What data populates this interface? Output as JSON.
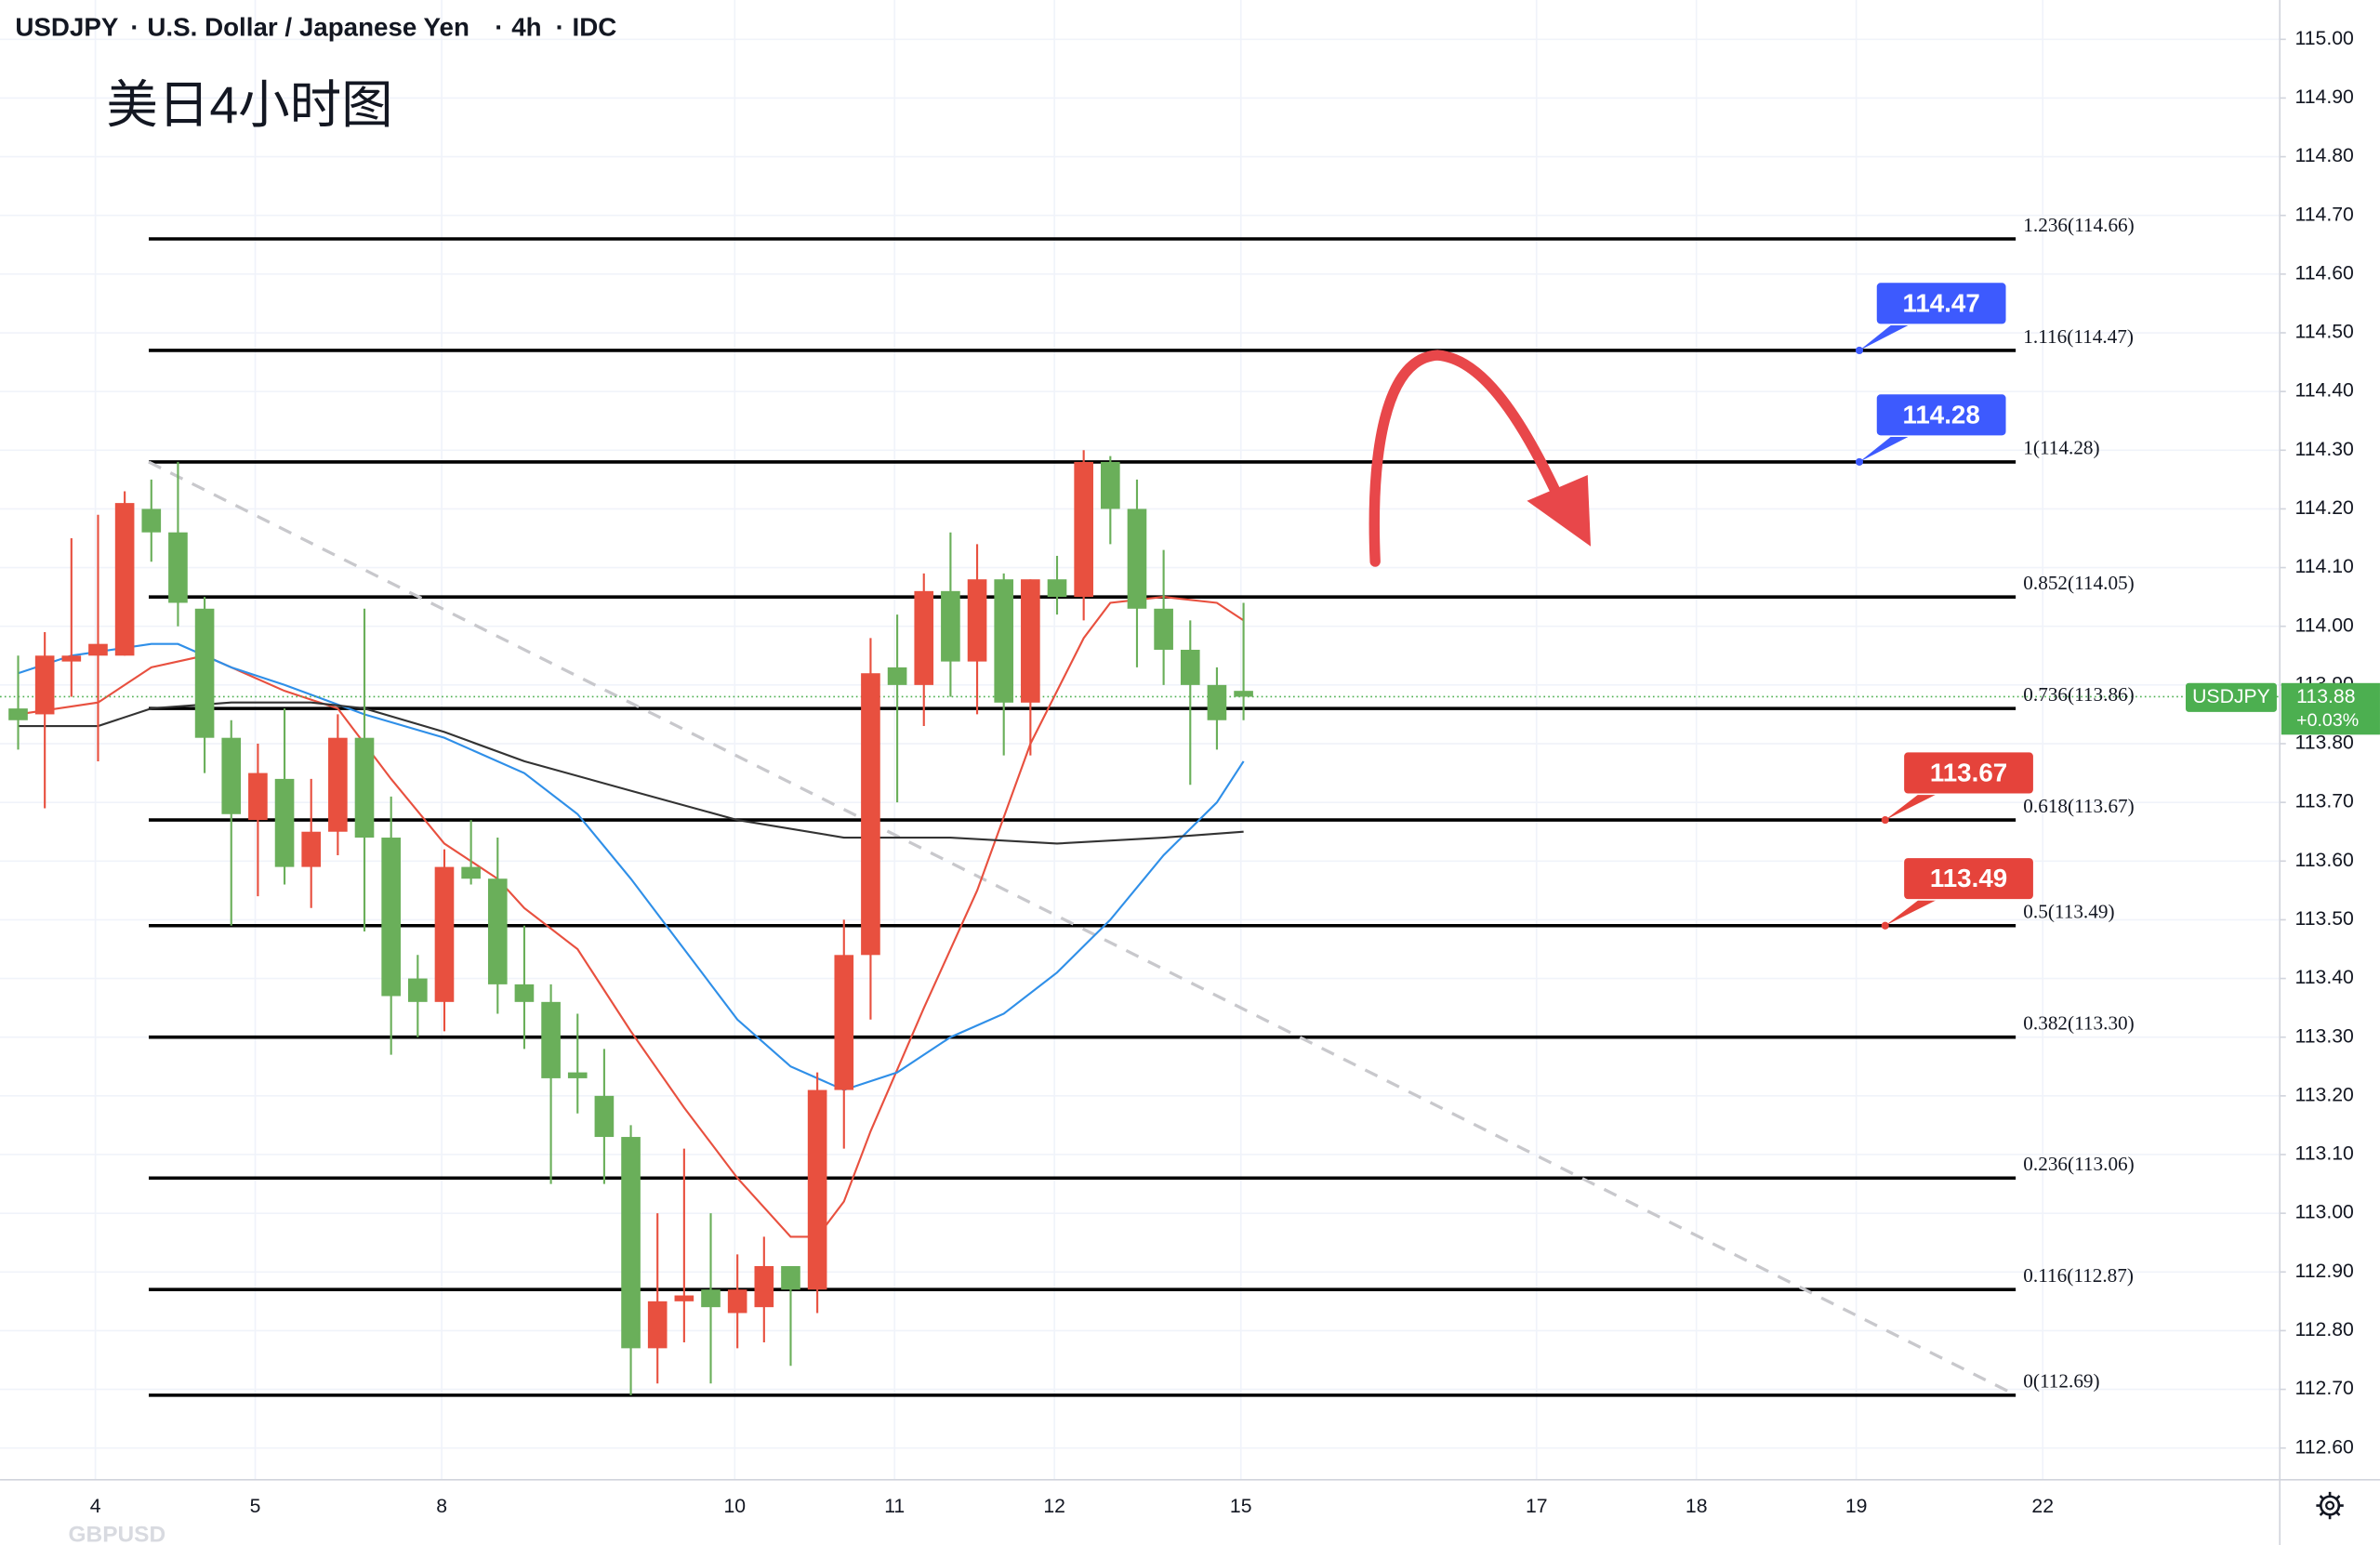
{
  "header": {
    "symbol": "USDJPY",
    "name": "U.S. Dollar / Japanese Yen",
    "interval": "4h",
    "source": "IDC"
  },
  "footer_symbol": "GBPUSD",
  "chart_data": {
    "type": "candlestick",
    "title": "美日4小时图",
    "up_color": "#e8503f",
    "down_color": "#6aaf5a",
    "open": [
      113.86,
      113.85,
      113.94,
      113.95,
      113.95,
      114.2,
      114.16,
      114.03,
      113.81,
      113.67,
      113.74,
      113.59,
      113.65,
      113.81,
      113.64,
      113.4,
      113.36,
      113.59,
      113.57,
      113.39,
      113.36,
      113.24,
      113.2,
      113.13,
      112.77,
      112.85,
      112.87,
      112.83,
      112.84,
      112.91,
      112.87,
      113.21,
      113.44,
      113.93,
      113.9,
      114.06,
      113.94,
      114.08,
      113.87,
      114.08,
      114.05,
      114.28,
      114.2,
      114.03,
      113.96,
      113.9,
      113.89
    ],
    "high": [
      113.95,
      113.99,
      114.15,
      114.19,
      114.23,
      114.25,
      114.28,
      114.05,
      113.84,
      113.8,
      113.86,
      113.74,
      113.85,
      114.03,
      113.71,
      113.44,
      113.62,
      113.67,
      113.64,
      113.49,
      113.39,
      113.34,
      113.28,
      113.15,
      113.0,
      113.11,
      113.0,
      112.93,
      112.96,
      112.91,
      113.24,
      113.5,
      113.98,
      114.02,
      114.09,
      114.16,
      114.14,
      114.09,
      114.08,
      114.12,
      114.3,
      114.29,
      114.25,
      114.13,
      114.01,
      113.93,
      114.04
    ],
    "low": [
      113.79,
      113.69,
      113.88,
      113.77,
      113.95,
      114.11,
      114.0,
      113.75,
      113.49,
      113.54,
      113.56,
      113.52,
      113.61,
      113.48,
      113.27,
      113.3,
      113.31,
      113.56,
      113.34,
      113.28,
      113.05,
      113.17,
      113.05,
      112.69,
      112.71,
      112.78,
      112.71,
      112.77,
      112.78,
      112.74,
      112.83,
      113.11,
      113.33,
      113.7,
      113.83,
      113.88,
      113.85,
      113.78,
      113.78,
      114.02,
      114.01,
      114.14,
      113.93,
      113.9,
      113.73,
      113.79,
      113.84
    ],
    "close": [
      113.84,
      113.95,
      113.95,
      113.97,
      114.21,
      114.16,
      114.04,
      113.81,
      113.68,
      113.75,
      113.59,
      113.65,
      113.81,
      113.64,
      113.37,
      113.36,
      113.59,
      113.57,
      113.39,
      113.36,
      113.23,
      113.23,
      113.13,
      112.77,
      112.85,
      112.86,
      112.84,
      112.87,
      112.91,
      112.87,
      113.21,
      113.44,
      113.92,
      113.9,
      114.06,
      113.94,
      114.08,
      113.87,
      114.08,
      114.05,
      114.28,
      114.2,
      114.03,
      113.96,
      113.9,
      113.84,
      113.88
    ],
    "moving_averages": [
      {
        "color": "#e8503f",
        "x": [
          0,
          3,
          5,
          7,
          8,
          10,
          12,
          14,
          16,
          18,
          19,
          21,
          23,
          25,
          27,
          29,
          30,
          31,
          32,
          34,
          36,
          38,
          40,
          41,
          43,
          45,
          46
        ],
        "values": [
          113.85,
          113.87,
          113.93,
          113.95,
          113.93,
          113.89,
          113.86,
          113.74,
          113.63,
          113.57,
          113.52,
          113.45,
          113.31,
          113.18,
          113.06,
          112.96,
          112.96,
          113.02,
          113.14,
          113.35,
          113.55,
          113.8,
          113.98,
          114.04,
          114.05,
          114.04,
          114.01
        ]
      },
      {
        "color": "#2f8fe8",
        "x": [
          0,
          2,
          5,
          6,
          8,
          10,
          13,
          16,
          19,
          21,
          23,
          25,
          27,
          29,
          31,
          33,
          35,
          37,
          39,
          41,
          43,
          45,
          46
        ],
        "values": [
          113.92,
          113.95,
          113.97,
          113.97,
          113.93,
          113.9,
          113.85,
          113.81,
          113.75,
          113.68,
          113.57,
          113.45,
          113.33,
          113.25,
          113.21,
          113.24,
          113.3,
          113.34,
          113.41,
          113.5,
          113.61,
          113.7,
          113.77
        ]
      },
      {
        "color": "#333333",
        "x": [
          0,
          3,
          5,
          8,
          11,
          13,
          16,
          19,
          23,
          27,
          31,
          35,
          39,
          43,
          46
        ],
        "values": [
          113.83,
          113.83,
          113.86,
          113.87,
          113.87,
          113.86,
          113.82,
          113.77,
          113.72,
          113.67,
          113.64,
          113.64,
          113.63,
          113.64,
          113.65
        ]
      }
    ],
    "fib_levels": [
      {
        "value": 114.66,
        "label": "1.236(114.66)"
      },
      {
        "value": 114.47,
        "label": "1.116(114.47)"
      },
      {
        "value": 114.28,
        "label": "1(114.28)"
      },
      {
        "value": 114.05,
        "label": "0.852(114.05)"
      },
      {
        "value": 113.86,
        "label": "0.736(113.86)"
      },
      {
        "value": 113.67,
        "label": "0.618(113.67)"
      },
      {
        "value": 113.49,
        "label": "0.5(113.49)"
      },
      {
        "value": 113.3,
        "label": "0.382(113.30)"
      },
      {
        "value": 113.06,
        "label": "0.236(113.06)"
      },
      {
        "value": 112.87,
        "label": "0.116(112.87)"
      },
      {
        "value": 112.69,
        "label": "0(112.69)"
      }
    ],
    "price_tags": [
      {
        "value": 114.47,
        "color": "#3d5afe"
      },
      {
        "value": 114.28,
        "color": "#3d5afe"
      },
      {
        "value": 113.67,
        "color": "#e5433b"
      },
      {
        "value": 113.49,
        "color": "#e5433b"
      }
    ],
    "trendline": {
      "x": [
        4.9,
        75.0
      ],
      "values": [
        114.28,
        112.69
      ]
    },
    "last_price": {
      "symbol": "USDJPY",
      "value": 113.88,
      "change": "+0.03%",
      "color": "#4caf50"
    },
    "xlim": [
      -0.68,
      84.9
    ],
    "xticks": [
      {
        "value": 2.9,
        "label": "4"
      },
      {
        "value": 8.9,
        "label": "5"
      },
      {
        "value": 15.9,
        "label": "8"
      },
      {
        "value": 26.9,
        "label": "10"
      },
      {
        "value": 32.9,
        "label": "11"
      },
      {
        "value": 38.9,
        "label": "12"
      },
      {
        "value": 45.9,
        "label": "15"
      },
      {
        "value": 57.0,
        "label": "17"
      },
      {
        "value": 63.0,
        "label": "18"
      },
      {
        "value": 69.0,
        "label": "19"
      },
      {
        "value": 76.0,
        "label": "22"
      }
    ],
    "ylim": [
      112.546,
      115.067
    ],
    "yticks": [
      {
        "value": 112.6,
        "label": "112.60"
      },
      {
        "value": 112.7,
        "label": "112.70"
      },
      {
        "value": 112.8,
        "label": "112.80"
      },
      {
        "value": 112.9,
        "label": "112.90"
      },
      {
        "value": 113.0,
        "label": "113.00"
      },
      {
        "value": 113.1,
        "label": "113.10"
      },
      {
        "value": 113.2,
        "label": "113.20"
      },
      {
        "value": 113.3,
        "label": "113.30"
      },
      {
        "value": 113.4,
        "label": "113.40"
      },
      {
        "value": 113.5,
        "label": "113.50"
      },
      {
        "value": 113.6,
        "label": "113.60"
      },
      {
        "value": 113.7,
        "label": "113.70"
      },
      {
        "value": 113.8,
        "label": "113.80"
      },
      {
        "value": 113.9,
        "label": "113.90"
      },
      {
        "value": 114.0,
        "label": "114.00"
      },
      {
        "value": 114.1,
        "label": "114.10"
      },
      {
        "value": 114.2,
        "label": "114.20"
      },
      {
        "value": 114.3,
        "label": "114.30"
      },
      {
        "value": 114.4,
        "label": "114.40"
      },
      {
        "value": 114.5,
        "label": "114.50"
      },
      {
        "value": 114.6,
        "label": "114.60"
      },
      {
        "value": 114.7,
        "label": "114.70"
      },
      {
        "value": 114.8,
        "label": "114.80"
      },
      {
        "value": 114.9,
        "label": "114.90"
      },
      {
        "value": 115.0,
        "label": "115.00"
      }
    ],
    "grid": true
  }
}
